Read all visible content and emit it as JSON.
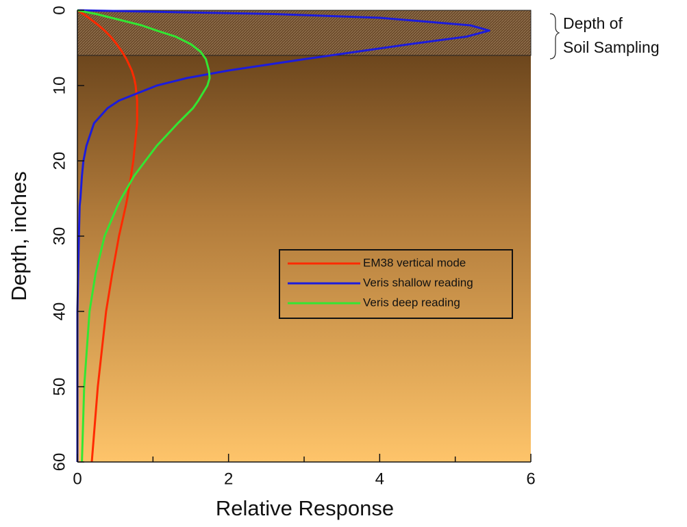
{
  "chart_data": {
    "type": "line",
    "xlabel": "Relative Response",
    "ylabel": "Depth, inches",
    "depths": [
      0,
      0.5,
      1,
      2,
      2.7,
      3.5,
      4.5,
      5.5,
      6.5,
      8,
      9,
      10,
      12,
      13,
      15,
      18,
      20,
      22,
      25,
      26,
      30,
      35,
      40,
      50,
      60
    ],
    "series": [
      {
        "name": "EM38 vertical mode",
        "color": "#ff2a00",
        "values": [
          0,
          0.08,
          0.15,
          0.28,
          0.36,
          0.44,
          0.52,
          0.59,
          0.65,
          0.72,
          0.75,
          0.77,
          0.79,
          0.79,
          0.79,
          0.76,
          0.74,
          0.71,
          0.66,
          0.64,
          0.55,
          0.46,
          0.38,
          0.27,
          0.19
        ]
      },
      {
        "name": "Veris shallow reading",
        "color": "#1c1cdc",
        "values": [
          0,
          2.6,
          4.0,
          5.2,
          5.45,
          5.15,
          4.4,
          3.7,
          3.0,
          2.0,
          1.45,
          1.05,
          0.55,
          0.4,
          0.22,
          0.12,
          0.08,
          0.06,
          0.04,
          0.03,
          0.02,
          0.01,
          0,
          0,
          0
        ]
      },
      {
        "name": "Veris deep reading",
        "color": "#33e633",
        "values": [
          0,
          0.25,
          0.45,
          0.85,
          1.05,
          1.3,
          1.5,
          1.63,
          1.7,
          1.74,
          1.75,
          1.72,
          1.6,
          1.53,
          1.33,
          1.05,
          0.9,
          0.75,
          0.58,
          0.53,
          0.36,
          0.24,
          0.16,
          0.09,
          0.06
        ]
      }
    ],
    "xlim": [
      0,
      6
    ],
    "xticks": [
      0,
      2,
      4,
      6
    ],
    "xminor_ticks": [
      1,
      3,
      5
    ],
    "ylim": [
      60,
      0
    ],
    "yticks": [
      0,
      10,
      20,
      30,
      40,
      50,
      60
    ],
    "sampling_depth": 6,
    "annotation": [
      "Depth of",
      "Soil Sampling"
    ],
    "legend": "center-right"
  }
}
